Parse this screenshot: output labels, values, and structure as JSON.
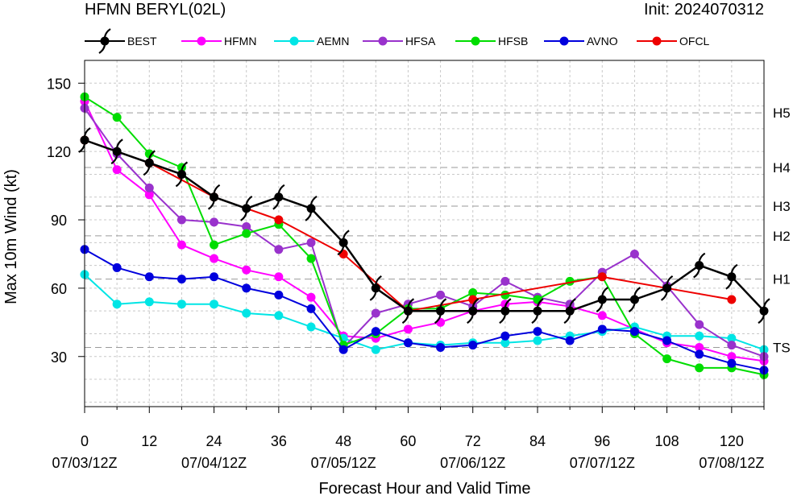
{
  "header": {
    "title": "HFMN BERYL(02L)",
    "init": "Init: 2024070312"
  },
  "chart_data": {
    "type": "line",
    "xlabel": "Forecast Hour and Valid Time",
    "ylabel": "Max 10m Wind (kt)",
    "xlim": [
      0,
      126
    ],
    "ylim": [
      8,
      160
    ],
    "x_ticks": [
      0,
      12,
      24,
      36,
      48,
      60,
      72,
      84,
      96,
      108,
      120
    ],
    "x_tick_labels": [
      "0",
      "12",
      "24",
      "36",
      "48",
      "60",
      "72",
      "84",
      "96",
      "108",
      "120"
    ],
    "date_ticks": [
      {
        "x": 0,
        "label": "07/03/12Z"
      },
      {
        "x": 24,
        "label": "07/04/12Z"
      },
      {
        "x": 48,
        "label": "07/05/12Z"
      },
      {
        "x": 72,
        "label": "07/06/12Z"
      },
      {
        "x": 96,
        "label": "07/07/12Z"
      },
      {
        "x": 120,
        "label": "07/08/12Z"
      }
    ],
    "y_ticks": [
      30,
      60,
      90,
      120,
      150
    ],
    "y_tick_labels": [
      "30",
      "60",
      "90",
      "120",
      "150"
    ],
    "grid": true,
    "legend_position": "top",
    "category_lines": [
      {
        "label": "H5",
        "value": 137
      },
      {
        "label": "H4",
        "value": 113
      },
      {
        "label": "H3",
        "value": 96
      },
      {
        "label": "H2",
        "value": 83
      },
      {
        "label": "H1",
        "value": 64
      },
      {
        "label": "TS",
        "value": 34
      }
    ],
    "series": [
      {
        "name": "BEST",
        "color": "#000000",
        "marker": "hurricane",
        "x": [
          0,
          6,
          12,
          18,
          24,
          30,
          36,
          42,
          48,
          54,
          60,
          66,
          72,
          78,
          84,
          90,
          96,
          102,
          108,
          114,
          120,
          126
        ],
        "y": [
          125,
          120,
          115,
          110,
          100,
          95,
          100,
          95,
          80,
          60,
          50,
          50,
          50,
          50,
          50,
          50,
          55,
          55,
          60,
          70,
          65,
          50
        ]
      },
      {
        "name": "HFMN",
        "color": "#ff00ff",
        "marker": "dot",
        "x": [
          0,
          6,
          12,
          18,
          24,
          30,
          36,
          42,
          48,
          54,
          60,
          66,
          72,
          78,
          84,
          90,
          96,
          102,
          108,
          114,
          120,
          126
        ],
        "y": [
          142,
          112,
          101,
          79,
          73,
          68,
          65,
          56,
          39,
          38,
          42,
          45,
          50,
          53,
          54,
          52,
          48,
          42,
          36,
          34,
          30,
          28
        ]
      },
      {
        "name": "AEMN",
        "color": "#00e5e5",
        "marker": "dot",
        "x": [
          0,
          6,
          12,
          18,
          24,
          30,
          36,
          42,
          48,
          54,
          60,
          66,
          72,
          78,
          84,
          90,
          96,
          102,
          108,
          114,
          120,
          126
        ],
        "y": [
          66,
          53,
          54,
          53,
          53,
          49,
          48,
          43,
          38,
          33,
          36,
          35,
          36,
          36,
          37,
          39,
          41,
          43,
          39,
          39,
          38,
          33
        ]
      },
      {
        "name": "HFSA",
        "color": "#9932cc",
        "marker": "dot",
        "x": [
          0,
          6,
          12,
          18,
          24,
          30,
          36,
          42,
          48,
          54,
          60,
          66,
          72,
          78,
          84,
          90,
          96,
          102,
          108,
          114,
          120,
          126
        ],
        "y": [
          139,
          119,
          104,
          90,
          89,
          87,
          77,
          80,
          34,
          49,
          53,
          57,
          52,
          63,
          56,
          53,
          67,
          75,
          61,
          44,
          35,
          30
        ]
      },
      {
        "name": "HFSB",
        "color": "#00dd00",
        "marker": "dot",
        "x": [
          0,
          6,
          12,
          18,
          24,
          30,
          36,
          42,
          48,
          54,
          60,
          66,
          72,
          78,
          84,
          90,
          96,
          102,
          108,
          114,
          120,
          126
        ],
        "y": [
          144,
          135,
          119,
          113,
          79,
          84,
          88,
          73,
          35,
          40,
          51,
          51,
          58,
          57,
          55,
          63,
          65,
          40,
          29,
          25,
          25,
          22
        ]
      },
      {
        "name": "AVNO",
        "color": "#0000dd",
        "marker": "dot",
        "x": [
          0,
          6,
          12,
          18,
          24,
          30,
          36,
          42,
          48,
          54,
          60,
          66,
          72,
          78,
          84,
          90,
          96,
          102,
          108,
          114,
          120,
          126
        ],
        "y": [
          77,
          69,
          65,
          64,
          65,
          60,
          57,
          51,
          33,
          41,
          36,
          34,
          35,
          39,
          41,
          37,
          42,
          41,
          37,
          31,
          27,
          24
        ]
      },
      {
        "name": "OFCL",
        "color": "#ee0000",
        "marker": "dot",
        "x": [
          0,
          12,
          24,
          36,
          48,
          60,
          72,
          96,
          120
        ],
        "y": [
          125,
          115,
          100,
          90,
          75,
          50,
          55,
          65,
          55
        ]
      }
    ]
  }
}
